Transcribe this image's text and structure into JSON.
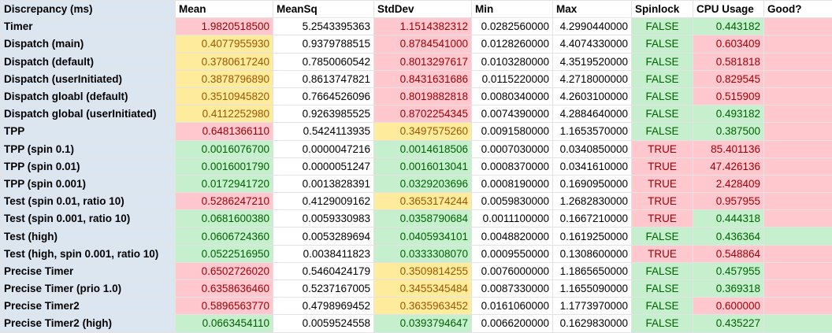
{
  "headers": [
    "Discrepancy (ms)",
    "Mean",
    "MeanSq",
    "StdDev",
    "Min",
    "Max",
    "Spinlock",
    "CPU Usage",
    "Good?"
  ],
  "rows": [
    {
      "label": "Timer",
      "mean": "1.9820518500",
      "mean_s": "red",
      "meansq": "5.2543395363",
      "stddev": "1.1514382312",
      "stddev_s": "red",
      "min": "0.0282560000",
      "max": "4.2990440000",
      "spin": "FALSE",
      "spin_s": "green",
      "cpu": "0.443182",
      "cpu_s": "green",
      "good": "",
      "good_s": "red"
    },
    {
      "label": "Dispatch (main)",
      "mean": "0.4077955930",
      "mean_s": "yellow",
      "meansq": "0.9379788515",
      "stddev": "0.8784541000",
      "stddev_s": "red",
      "min": "0.0128260000",
      "max": "4.4074330000",
      "spin": "FALSE",
      "spin_s": "green",
      "cpu": "0.603409",
      "cpu_s": "red",
      "good": "",
      "good_s": "red"
    },
    {
      "label": "Dispatch (default)",
      "mean": "0.3780617240",
      "mean_s": "yellow",
      "meansq": "0.7850060542",
      "stddev": "0.8013297617",
      "stddev_s": "red",
      "min": "0.0103280000",
      "max": "4.3519520000",
      "spin": "FALSE",
      "spin_s": "green",
      "cpu": "0.581818",
      "cpu_s": "red",
      "good": "",
      "good_s": "red"
    },
    {
      "label": "Dispatch (userInitiated)",
      "mean": "0.3878796890",
      "mean_s": "yellow",
      "meansq": "0.8613747821",
      "stddev": "0.8431631686",
      "stddev_s": "red",
      "min": "0.0115220000",
      "max": "4.2718000000",
      "spin": "FALSE",
      "spin_s": "green",
      "cpu": "0.829545",
      "cpu_s": "red",
      "good": "",
      "good_s": "red"
    },
    {
      "label": "Dispatch gloabl (default)",
      "mean": "0.3510945820",
      "mean_s": "yellow",
      "meansq": "0.7664526096",
      "stddev": "0.8019882818",
      "stddev_s": "red",
      "min": "0.0080340000",
      "max": "4.2603100000",
      "spin": "FALSE",
      "spin_s": "green",
      "cpu": "0.515909",
      "cpu_s": "red",
      "good": "",
      "good_s": "red"
    },
    {
      "label": "Dispatch global (userInitiated)",
      "mean": "0.4112252980",
      "mean_s": "yellow",
      "meansq": "0.9263985525",
      "stddev": "0.8702254345",
      "stddev_s": "red",
      "min": "0.0074390000",
      "max": "4.2884640000",
      "spin": "FALSE",
      "spin_s": "green",
      "cpu": "0.493182",
      "cpu_s": "green",
      "good": "",
      "good_s": "red"
    },
    {
      "label": "TPP",
      "mean": "0.6481366110",
      "mean_s": "red",
      "meansq": "0.5424113935",
      "stddev": "0.3497575260",
      "stddev_s": "yellow",
      "min": "0.0091580000",
      "max": "1.1653570000",
      "spin": "FALSE",
      "spin_s": "green",
      "cpu": "0.387500",
      "cpu_s": "green",
      "good": "",
      "good_s": "red"
    },
    {
      "label": "TPP (spin 0.1)",
      "mean": "0.0016076700",
      "mean_s": "green",
      "meansq": "0.0000047216",
      "stddev": "0.0014618506",
      "stddev_s": "green",
      "min": "0.0007030000",
      "max": "0.0340850000",
      "spin": "TRUE",
      "spin_s": "red",
      "cpu": "85.401136",
      "cpu_s": "red",
      "good": "",
      "good_s": "red"
    },
    {
      "label": "TPP (spin 0.01)",
      "mean": "0.0016001790",
      "mean_s": "green",
      "meansq": "0.0000051247",
      "stddev": "0.0016013041",
      "stddev_s": "green",
      "min": "0.0008370000",
      "max": "0.0341610000",
      "spin": "TRUE",
      "spin_s": "red",
      "cpu": "47.426136",
      "cpu_s": "red",
      "good": "",
      "good_s": "red"
    },
    {
      "label": "TPP (spin 0.001)",
      "mean": "0.0172941720",
      "mean_s": "green",
      "meansq": "0.0013828391",
      "stddev": "0.0329203696",
      "stddev_s": "green",
      "min": "0.0008190000",
      "max": "0.1690950000",
      "spin": "TRUE",
      "spin_s": "red",
      "cpu": "2.428409",
      "cpu_s": "red",
      "good": "",
      "good_s": "red"
    },
    {
      "label": "Test (spin 0.01, ratio 10)",
      "mean": "0.5286247210",
      "mean_s": "red",
      "meansq": "0.4129009162",
      "stddev": "0.3653174244",
      "stddev_s": "yellow",
      "min": "0.0059830000",
      "max": "1.2682830000",
      "spin": "TRUE",
      "spin_s": "red",
      "cpu": "0.957955",
      "cpu_s": "red",
      "good": "",
      "good_s": "red"
    },
    {
      "label": "Test (spin 0.001, ratio 10)",
      "mean": "0.0681600380",
      "mean_s": "green",
      "meansq": "0.0059330983",
      "stddev": "0.0358790684",
      "stddev_s": "green",
      "min": "0.0011100000",
      "max": "0.1667210000",
      "spin": "TRUE",
      "spin_s": "red",
      "cpu": "0.444318",
      "cpu_s": "green",
      "good": "",
      "good_s": "red"
    },
    {
      "label": "Test (high)",
      "mean": "0.0606724360",
      "mean_s": "green",
      "meansq": "0.0053289694",
      "stddev": "0.0405934101",
      "stddev_s": "green",
      "min": "0.0048820000",
      "max": "0.1619250000",
      "spin": "FALSE",
      "spin_s": "green",
      "cpu": "0.436364",
      "cpu_s": "green",
      "good": "",
      "good_s": "green"
    },
    {
      "label": "Test (high, spin 0.001, ratio 10)",
      "mean": "0.0522516950",
      "mean_s": "green",
      "meansq": "0.0038411823",
      "stddev": "0.0333308070",
      "stddev_s": "green",
      "min": "0.0009550000",
      "max": "0.1308600000",
      "spin": "TRUE",
      "spin_s": "red",
      "cpu": "0.548864",
      "cpu_s": "red",
      "good": "",
      "good_s": "red"
    },
    {
      "label": "Precise Timer",
      "mean": "0.6502726020",
      "mean_s": "red",
      "meansq": "0.5460424179",
      "stddev": "0.3509814255",
      "stddev_s": "yellow",
      "min": "0.0076000000",
      "max": "1.1865650000",
      "spin": "FALSE",
      "spin_s": "green",
      "cpu": "0.457955",
      "cpu_s": "green",
      "good": "",
      "good_s": "red"
    },
    {
      "label": "Precise Timer (prio 1.0)",
      "mean": "0.6358636460",
      "mean_s": "red",
      "meansq": "0.5237167005",
      "stddev": "0.3455345484",
      "stddev_s": "yellow",
      "min": "0.0087330000",
      "max": "1.1655090000",
      "spin": "FALSE",
      "spin_s": "green",
      "cpu": "0.369318",
      "cpu_s": "green",
      "good": "",
      "good_s": "red"
    },
    {
      "label": "Precise Timer2",
      "mean": "0.5896563770",
      "mean_s": "red",
      "meansq": "0.4798969452",
      "stddev": "0.3635963452",
      "stddev_s": "yellow",
      "min": "0.0161060000",
      "max": "1.1773970000",
      "spin": "FALSE",
      "spin_s": "green",
      "cpu": "0.600000",
      "cpu_s": "red",
      "good": "",
      "good_s": "red"
    },
    {
      "label": "Precise Timer2 (high)",
      "mean": "0.0663454110",
      "mean_s": "green",
      "meansq": "0.0059524558",
      "stddev": "0.0393794647",
      "stddev_s": "green",
      "min": "0.0066200000",
      "max": "0.1629830000",
      "spin": "FALSE",
      "spin_s": "green",
      "cpu": "0.435227",
      "cpu_s": "green",
      "good": "",
      "good_s": "green"
    }
  ],
  "colors": {
    "label_bg": "#dce6f1",
    "red_bg": "#ffc7ce",
    "red_fg": "#9c0006",
    "yellow_bg": "#ffeb9c",
    "yellow_fg": "#9c5700",
    "green_bg": "#c6efce",
    "green_fg": "#006100"
  }
}
